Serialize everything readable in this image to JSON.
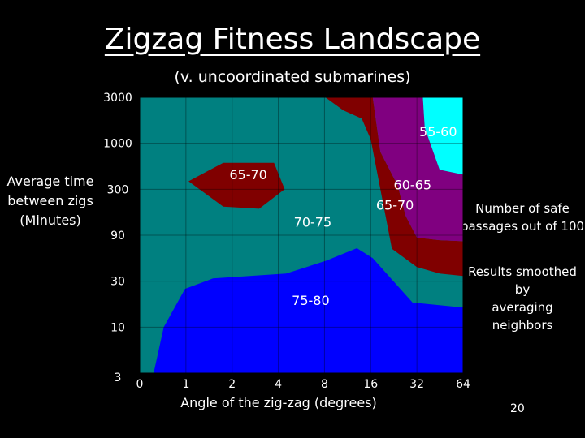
{
  "slide": {
    "title": "Zigzag Fitness Landscape",
    "subtitle": "(v. uncoordinated submarines)",
    "page_number": "20",
    "note_safe": [
      "Number of safe",
      "passages out of 100"
    ],
    "note_smooth": [
      "Results smoothed by",
      "averaging neighbors"
    ]
  },
  "chart_data": {
    "type": "heatmap",
    "title": "Zigzag Fitness Landscape",
    "subtitle": "(v. uncoordinated submarines)",
    "xlabel": "Angle of the zig-zag (degrees)",
    "ylabel": [
      "Average time",
      "between zigs",
      "(Minutes)"
    ],
    "x_ticks": [
      "0",
      "1",
      "2",
      "4",
      "8",
      "16",
      "32",
      "64"
    ],
    "y_ticks": [
      "3000",
      "1000",
      "300",
      "90",
      "30",
      "10",
      "3"
    ],
    "legend": "Number of safe passages out of 100",
    "colors": {
      "70-75": "#008080",
      "65-70": "#800000",
      "60-65": "#800080",
      "55-60": "#00ffff",
      "75-80": "#0000ff"
    },
    "regions": [
      {
        "label": "70-75",
        "color": "#008080",
        "polygon": [
          [
            0,
            3000
          ],
          [
            64,
            3000
          ],
          [
            64,
            3
          ],
          [
            0,
            3
          ]
        ]
      },
      {
        "label": "65-70",
        "color": "#800000",
        "polygon": [
          [
            8.1,
            3000
          ],
          [
            16.5,
            3000
          ],
          [
            18.5,
            800
          ],
          [
            21.5,
            480
          ],
          [
            24,
            330
          ],
          [
            27,
            150
          ],
          [
            32,
            85
          ],
          [
            45,
            80
          ],
          [
            64,
            78
          ],
          [
            64,
            34
          ],
          [
            45,
            36
          ],
          [
            32,
            42
          ],
          [
            22,
            65
          ],
          [
            16,
            1100
          ],
          [
            14,
            1800
          ],
          [
            10.6,
            2200
          ]
        ]
      },
      {
        "label": "60-65",
        "color": "#800080",
        "polygon": [
          [
            16.5,
            3000
          ],
          [
            35,
            3000
          ],
          [
            36,
            1450
          ],
          [
            45,
            500
          ],
          [
            64,
            440
          ],
          [
            64,
            78
          ],
          [
            45,
            80
          ],
          [
            32,
            85
          ],
          [
            27,
            150
          ],
          [
            24,
            330
          ],
          [
            21.5,
            480
          ],
          [
            18.5,
            800
          ]
        ]
      },
      {
        "label": "55-60",
        "color": "#00ffff",
        "polygon": [
          [
            35,
            3000
          ],
          [
            64,
            3000
          ],
          [
            64,
            440
          ],
          [
            45,
            500
          ],
          [
            36,
            1450
          ]
        ]
      },
      {
        "label": "65-70",
        "color": "#800000",
        "polygon": [
          [
            1.04,
            370
          ],
          [
            1.75,
            600
          ],
          [
            3.75,
            600
          ],
          [
            4.4,
            300
          ],
          [
            3.0,
            180
          ],
          [
            1.75,
            190
          ]
        ]
      },
      {
        "label": "75-80",
        "color": "#0000ff",
        "polygon": [
          [
            0.3,
            3
          ],
          [
            0.52,
            10
          ],
          [
            0.98,
            25
          ],
          [
            1.5,
            32
          ],
          [
            4.5,
            36
          ],
          [
            8.2,
            49
          ],
          [
            13,
            66
          ],
          [
            16.5,
            52
          ],
          [
            30,
            18
          ],
          [
            64,
            16
          ],
          [
            64,
            3
          ]
        ]
      }
    ],
    "labels": [
      {
        "text": "55-60",
        "x": 44,
        "y": 1180
      },
      {
        "text": "65-70",
        "x": 2.55,
        "y": 390
      },
      {
        "text": "60-65",
        "x": 30,
        "y": 300
      },
      {
        "text": "65-70",
        "x": 23,
        "y": 175
      },
      {
        "text": "70-75",
        "x": 6.7,
        "y": 112
      },
      {
        "text": "75-80",
        "x": 6.5,
        "y": 17
      }
    ]
  }
}
